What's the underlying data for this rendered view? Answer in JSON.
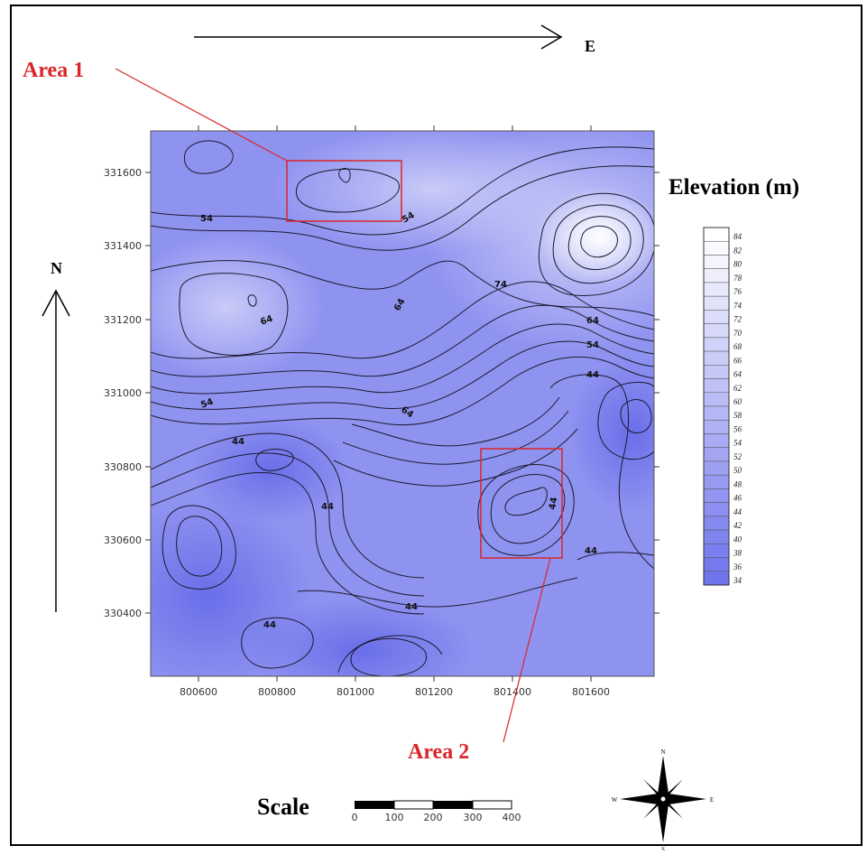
{
  "north_label": "N",
  "east_label": "E",
  "legend": {
    "title": "Elevation (m)",
    "levels": [
      "84",
      "82",
      "80",
      "78",
      "76",
      "74",
      "72",
      "70",
      "68",
      "66",
      "64",
      "62",
      "60",
      "58",
      "56",
      "54",
      "52",
      "50",
      "48",
      "46",
      "44",
      "42",
      "40",
      "38",
      "36",
      "34"
    ]
  },
  "axes": {
    "x_ticks": [
      "800600",
      "800800",
      "801000",
      "801200",
      "801400",
      "801600"
    ],
    "y_ticks": [
      "331600",
      "331400",
      "331200",
      "331000",
      "330800",
      "330600",
      "330400"
    ]
  },
  "contour_labels": [
    "54",
    "54",
    "74",
    "64",
    "64",
    "64",
    "54",
    "44",
    "54",
    "64",
    "44",
    "44",
    "44",
    "44",
    "44",
    "44"
  ],
  "areas": [
    {
      "label": "Area 1",
      "color": "#d9262b"
    },
    {
      "label": "Area 2",
      "color": "#d9262b"
    }
  ],
  "scale": {
    "label": "Scale",
    "ticks": [
      "0",
      "100",
      "200",
      "300",
      "400"
    ]
  },
  "compass": {
    "n": "N",
    "s": "S",
    "e": "E",
    "w": "W"
  },
  "colors": {
    "low": "#6f73ec",
    "high": "#ffffff",
    "area_box": "#d9262b"
  }
}
